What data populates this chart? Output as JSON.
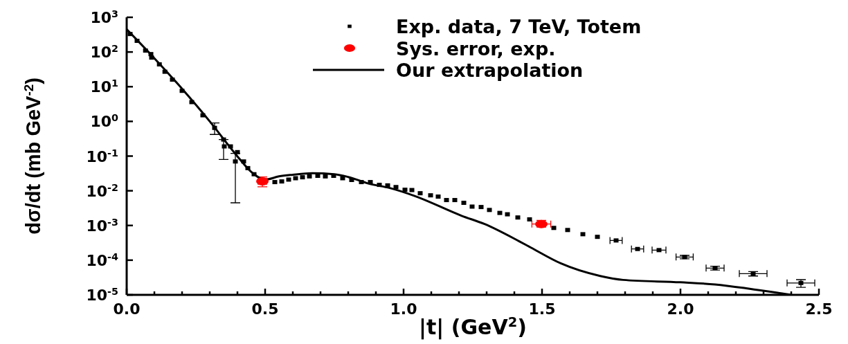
{
  "chart_data": {
    "type": "scatter",
    "xlabel": "|t| (GeV$^{2}$)",
    "ylabel": "dσ/dt (mb GeV$^{-2}$)",
    "log": "y",
    "legend": "top right",
    "grid": false,
    "xlim": [
      0,
      2.5
    ],
    "ylim": [
      1e-05,
      1000
    ],
    "xticks": [
      {
        "value": 0,
        "label": "0.0"
      },
      {
        "value": 0.1,
        "label": null
      },
      {
        "value": 0.2,
        "label": null
      },
      {
        "value": 0.3,
        "label": null
      },
      {
        "value": 0.4,
        "label": null
      },
      {
        "value": 0.5,
        "label": "0.5"
      },
      {
        "value": 0.6,
        "label": null
      },
      {
        "value": 0.7,
        "label": null
      },
      {
        "value": 0.8,
        "label": null
      },
      {
        "value": 0.9,
        "label": null
      },
      {
        "value": 1,
        "label": "1.0"
      },
      {
        "value": 1.1,
        "label": null
      },
      {
        "value": 1.2,
        "label": null
      },
      {
        "value": 1.3,
        "label": null
      },
      {
        "value": 1.4,
        "label": null
      },
      {
        "value": 1.5,
        "label": "1.5"
      },
      {
        "value": 1.6,
        "label": null
      },
      {
        "value": 1.7,
        "label": null
      },
      {
        "value": 1.8,
        "label": null
      },
      {
        "value": 1.9,
        "label": null
      },
      {
        "value": 2,
        "label": "2.0"
      },
      {
        "value": 2.1,
        "label": null
      },
      {
        "value": 2.2,
        "label": null
      },
      {
        "value": 2.3,
        "label": null
      },
      {
        "value": 2.4,
        "label": null
      },
      {
        "value": 2.5,
        "label": "2.5"
      }
    ],
    "yticks": [
      {
        "value": 1e-05,
        "label": "10$^{-5}$"
      },
      {
        "value": 0.0001,
        "label": "10$^{-4}$"
      },
      {
        "value": 0.001,
        "label": "10$^{-3}$"
      },
      {
        "value": 0.01,
        "label": "10$^{-2}$"
      },
      {
        "value": 0.1,
        "label": "10$^{-1}$"
      },
      {
        "value": 1,
        "label": "10$^{0}$"
      },
      {
        "value": 10,
        "label": "10$^{1}$"
      },
      {
        "value": 100,
        "label": "10$^{2}$"
      },
      {
        "value": 1000,
        "label": "10$^{3}$"
      }
    ],
    "series": [
      {
        "name": "Exp. data, 7 TeV, Totem",
        "color": "#000000",
        "marker": "square",
        "x": [
          0.0125,
          0.0375,
          0.068,
          0.0875,
          0.09,
          0.118,
          0.138,
          0.165,
          0.2,
          0.235,
          0.275,
          0.3175,
          0.35,
          0.3525,
          0.375,
          0.3925,
          0.4,
          0.4225,
          0.4375,
          0.46,
          0.535,
          0.56,
          0.585,
          0.61,
          0.635,
          0.66,
          0.69,
          0.7175,
          0.7475,
          0.78,
          0.8125,
          0.8475,
          0.88,
          0.9125,
          0.9425,
          0.9725,
          1.005,
          1.03,
          1.06,
          1.0975,
          1.125,
          1.155,
          1.185,
          1.2175,
          1.2475,
          1.28,
          1.31,
          1.3475,
          1.375,
          1.4125,
          1.455,
          1.5425,
          1.5925,
          1.6475,
          1.7,
          1.7675,
          1.845,
          1.9225,
          2.015,
          2.125,
          2.2625,
          2.435
        ],
        "values": [
          330,
          210,
          110,
          87,
          69,
          44,
          27,
          16,
          7.6,
          3.6,
          1.5,
          0.65,
          0.3,
          0.19,
          0.19,
          0.07,
          0.13,
          0.07,
          0.045,
          0.03,
          0.0178,
          0.0186,
          0.021,
          0.023,
          0.0245,
          0.026,
          0.027,
          0.026,
          0.027,
          0.023,
          0.0205,
          0.0178,
          0.0178,
          0.0148,
          0.0143,
          0.0128,
          0.0107,
          0.0105,
          0.0085,
          0.0074,
          0.0068,
          0.0054,
          0.0054,
          0.0045,
          0.0035,
          0.0034,
          0.0028,
          0.0023,
          0.0021,
          0.0017,
          0.0015,
          0.00085,
          0.00074,
          0.00056,
          0.00047,
          0.00037,
          0.00021,
          0.000195,
          0.000123,
          5.9e-05,
          4.1e-05,
          2.2e-05
        ],
        "errors": [
          null,
          null,
          null,
          null,
          null,
          null,
          null,
          null,
          null,
          null,
          null,
          [
            0.42,
            0.9
          ],
          [
            0.08,
            0.3
          ],
          null,
          null,
          [
            0.0045,
            0.12
          ],
          null,
          null,
          null,
          null,
          null,
          null,
          null,
          null,
          null,
          null,
          null,
          null,
          null,
          null,
          null,
          null,
          null,
          null,
          null,
          null,
          null,
          null,
          null,
          null,
          null,
          null,
          null,
          null,
          null,
          null,
          null,
          null,
          null,
          null,
          null,
          null,
          null,
          null,
          null,
          null,
          null,
          null,
          [
            0.00011,
            0.000137
          ],
          [
            5.2e-05,
            6.7e-05
          ],
          [
            3.5e-05,
            4.7e-05
          ],
          [
            1.65e-05,
            2.75e-05
          ]
        ],
        "xerrors": [
          null,
          null,
          null,
          null,
          null,
          null,
          null,
          null,
          null,
          null,
          null,
          null,
          null,
          null,
          null,
          null,
          null,
          null,
          null,
          null,
          null,
          null,
          null,
          null,
          null,
          null,
          null,
          null,
          null,
          null,
          null,
          null,
          null,
          null,
          null,
          null,
          null,
          null,
          null,
          null,
          null,
          null,
          null,
          null,
          null,
          null,
          null,
          null,
          null,
          null,
          null,
          null,
          null,
          null,
          null,
          0.022,
          0.022,
          0.025,
          0.031,
          0.0325,
          0.05,
          0.05
        ]
      },
      {
        "name": "Sys. error, exp.",
        "color": "#ff0000",
        "marker": "circle",
        "x": [
          0.49,
          1.4975
        ],
        "values": [
          0.0186,
          0.0011
        ],
        "errors": [
          [
            0.013,
            0.025
          ],
          [
            0.0009,
            0.0014
          ]
        ],
        "xerrors": [
          0.015,
          0.034
        ]
      },
      {
        "name": "Our extrapolation",
        "type": "line",
        "color": "#000000",
        "marker": "none",
        "line_style": "solid",
        "x": [
          0,
          0.1,
          0.2,
          0.3,
          0.4,
          0.45,
          0.5,
          0.55,
          0.6,
          0.67,
          0.75,
          0.8,
          0.875,
          0.95,
          1.04,
          1.21,
          1.2925,
          1.4175,
          1.46,
          1.5675,
          1.71,
          1.7925,
          2,
          2.125,
          2.25,
          2.375,
          2.4
        ],
        "values": [
          450,
          66,
          8.7,
          1,
          0.098,
          0.035,
          0.021,
          0.026,
          0.029,
          0.032,
          0.03,
          0.025,
          0.016,
          0.012,
          0.0071,
          0.0019,
          0.0011,
          0.00035,
          0.00023,
          8.1e-05,
          3.5e-05,
          2.7e-05,
          2.3e-05,
          2e-05,
          1.5e-05,
          1.07e-05,
          1e-05
        ]
      }
    ]
  }
}
